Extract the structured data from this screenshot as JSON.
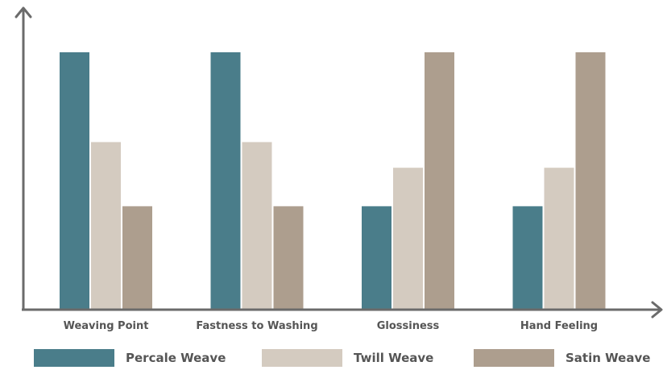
{
  "chart_data": {
    "type": "bar",
    "categories": [
      "Weaving Point",
      "Fastness to Washing",
      "Glossiness",
      "Hand Feeling"
    ],
    "series": [
      {
        "name": "Percale Weave",
        "values": [
          10,
          10,
          4,
          4
        ]
      },
      {
        "name": "Twill Weave",
        "values": [
          6.5,
          6.5,
          5.5,
          5.5
        ]
      },
      {
        "name": "Satin Weave",
        "values": [
          4,
          4,
          10,
          10
        ]
      }
    ],
    "ylim": [
      0,
      12
    ],
    "title": "",
    "xlabel": "",
    "ylabel": "",
    "grid": false,
    "legend_position": "bottom"
  },
  "colors": {
    "Percale Weave": "#4a7d8a",
    "Twill Weave": "#d4cbc0",
    "Satin Weave": "#ad9e8e",
    "axis": "#6b6b6b"
  }
}
